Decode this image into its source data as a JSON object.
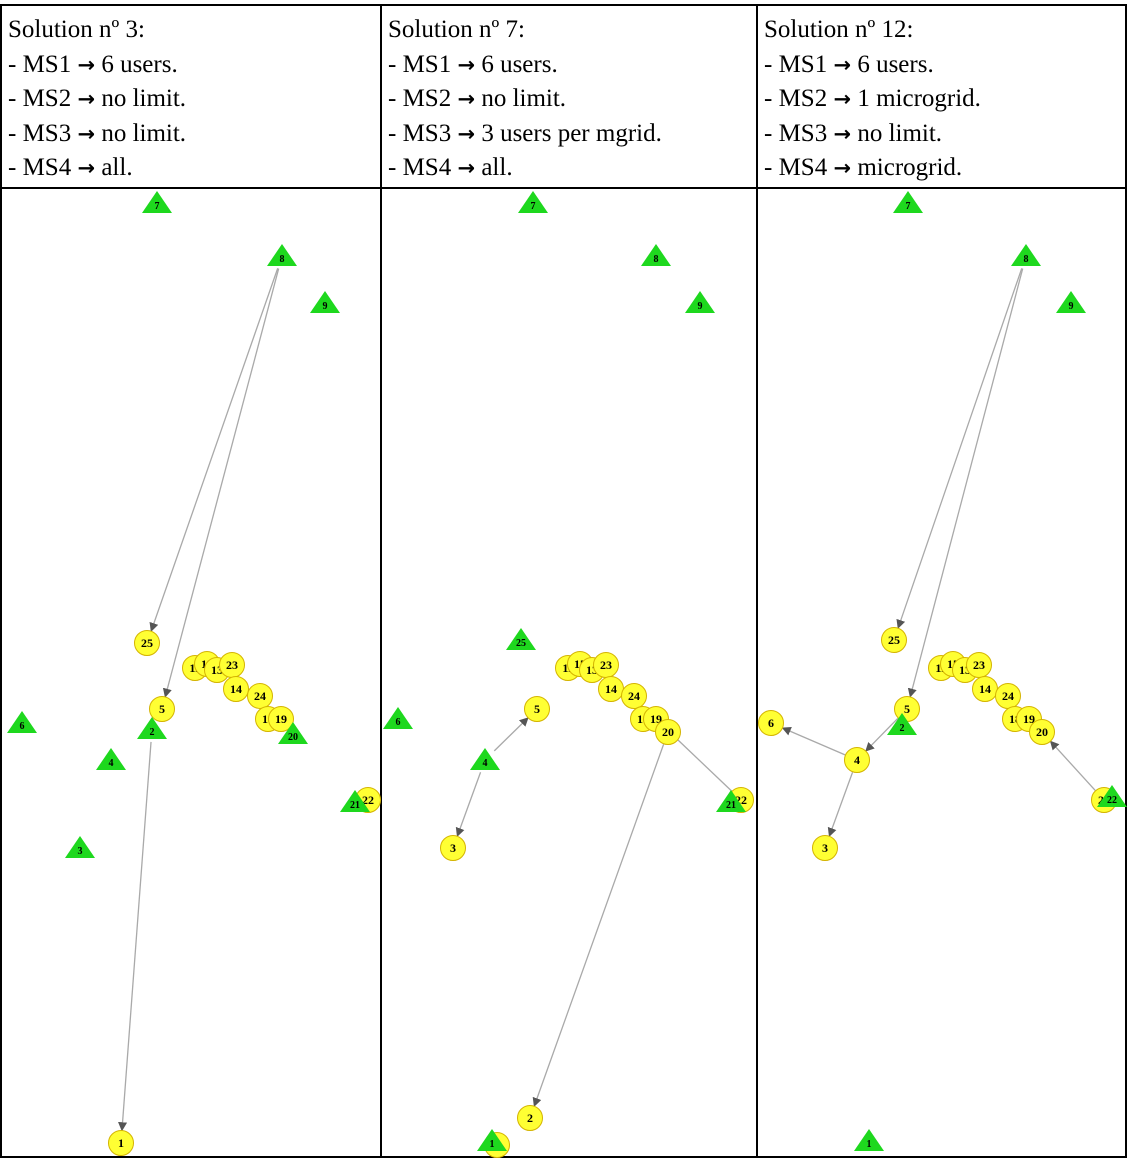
{
  "colors": {
    "user_node": "#ffff33",
    "user_stroke": "#d4b400",
    "source_node": "#1ed81e",
    "edge": "#a9a9a9"
  },
  "panels": [
    {
      "title": "Solution nº 3:",
      "rules": [
        {
          "name": "- MS1",
          "arrow": "→",
          "value": "6 users."
        },
        {
          "name": "- MS2",
          "arrow": "→",
          "value": "no limit."
        },
        {
          "name": "- MS3",
          "arrow": "→",
          "value": "no limit."
        },
        {
          "name": "- MS4",
          "arrow": "→",
          "value": "all."
        }
      ],
      "nodes": [
        {
          "id": "7",
          "shape": "triangle"
        },
        {
          "id": "8",
          "shape": "triangle"
        },
        {
          "id": "9",
          "shape": "triangle"
        },
        {
          "id": "25",
          "shape": "circle"
        },
        {
          "id": "11",
          "shape": "circle"
        },
        {
          "id": "15",
          "shape": "circle"
        },
        {
          "id": "13",
          "shape": "circle"
        },
        {
          "id": "23",
          "shape": "circle"
        },
        {
          "id": "14",
          "shape": "circle"
        },
        {
          "id": "24",
          "shape": "circle"
        },
        {
          "id": "18",
          "shape": "circle"
        },
        {
          "id": "19",
          "shape": "circle"
        },
        {
          "id": "5",
          "shape": "circle"
        },
        {
          "id": "20",
          "shape": "triangle"
        },
        {
          "id": "6",
          "shape": "triangle"
        },
        {
          "id": "4",
          "shape": "triangle"
        },
        {
          "id": "22",
          "shape": "circle"
        },
        {
          "id": "21",
          "shape": "triangle"
        },
        {
          "id": "3",
          "shape": "triangle"
        },
        {
          "id": "2",
          "shape": "triangle"
        },
        {
          "id": "1",
          "shape": "circle"
        }
      ]
    },
    {
      "title": "Solution nº 7:",
      "rules": [
        {
          "name": "- MS1",
          "arrow": "→",
          "value": "6 users."
        },
        {
          "name": "- MS2",
          "arrow": "→",
          "value": "no limit."
        },
        {
          "name": "- MS3",
          "arrow": "→",
          "value": "3 users per mgrid."
        },
        {
          "name": "- MS4",
          "arrow": "→",
          "value": "all."
        }
      ],
      "nodes": [
        {
          "id": "7",
          "shape": "triangle"
        },
        {
          "id": "8",
          "shape": "triangle"
        },
        {
          "id": "9",
          "shape": "triangle"
        },
        {
          "id": "25",
          "shape": "triangle"
        },
        {
          "id": "11",
          "shape": "circle"
        },
        {
          "id": "15",
          "shape": "circle"
        },
        {
          "id": "13",
          "shape": "circle"
        },
        {
          "id": "23",
          "shape": "circle"
        },
        {
          "id": "14",
          "shape": "circle"
        },
        {
          "id": "24",
          "shape": "circle"
        },
        {
          "id": "18",
          "shape": "circle"
        },
        {
          "id": "19",
          "shape": "circle"
        },
        {
          "id": "20",
          "shape": "circle"
        },
        {
          "id": "5",
          "shape": "circle"
        },
        {
          "id": "6",
          "shape": "triangle"
        },
        {
          "id": "4",
          "shape": "triangle"
        },
        {
          "id": "22",
          "shape": "circle"
        },
        {
          "id": "21",
          "shape": "triangle"
        },
        {
          "id": "3",
          "shape": "circle"
        },
        {
          "id": "2",
          "shape": "circle"
        },
        {
          "id": "1",
          "shape": "circle"
        },
        {
          "id": "1",
          "shape": "triangle"
        }
      ]
    },
    {
      "title": "Solution nº 12:",
      "rules": [
        {
          "name": "- MS1",
          "arrow": "→",
          "value": "6 users."
        },
        {
          "name": "- MS2",
          "arrow": "→",
          "value": "1 microgrid."
        },
        {
          "name": "- MS3",
          "arrow": "→",
          "value": "no limit."
        },
        {
          "name": "- MS4",
          "arrow": "→",
          "value": "microgrid."
        }
      ],
      "nodes": [
        {
          "id": "7",
          "shape": "triangle"
        },
        {
          "id": "8",
          "shape": "triangle"
        },
        {
          "id": "9",
          "shape": "triangle"
        },
        {
          "id": "25",
          "shape": "circle"
        },
        {
          "id": "11",
          "shape": "circle"
        },
        {
          "id": "15",
          "shape": "circle"
        },
        {
          "id": "13",
          "shape": "circle"
        },
        {
          "id": "23",
          "shape": "circle"
        },
        {
          "id": "14",
          "shape": "circle"
        },
        {
          "id": "24",
          "shape": "circle"
        },
        {
          "id": "18",
          "shape": "circle"
        },
        {
          "id": "19",
          "shape": "circle"
        },
        {
          "id": "20",
          "shape": "circle"
        },
        {
          "id": "5",
          "shape": "circle"
        },
        {
          "id": "6",
          "shape": "circle"
        },
        {
          "id": "4",
          "shape": "circle"
        },
        {
          "id": "22",
          "shape": "circle"
        },
        {
          "id": "22",
          "shape": "triangle"
        },
        {
          "id": "3",
          "shape": "circle"
        },
        {
          "id": "2",
          "shape": "triangle"
        },
        {
          "id": "1",
          "shape": "triangle"
        }
      ]
    }
  ]
}
